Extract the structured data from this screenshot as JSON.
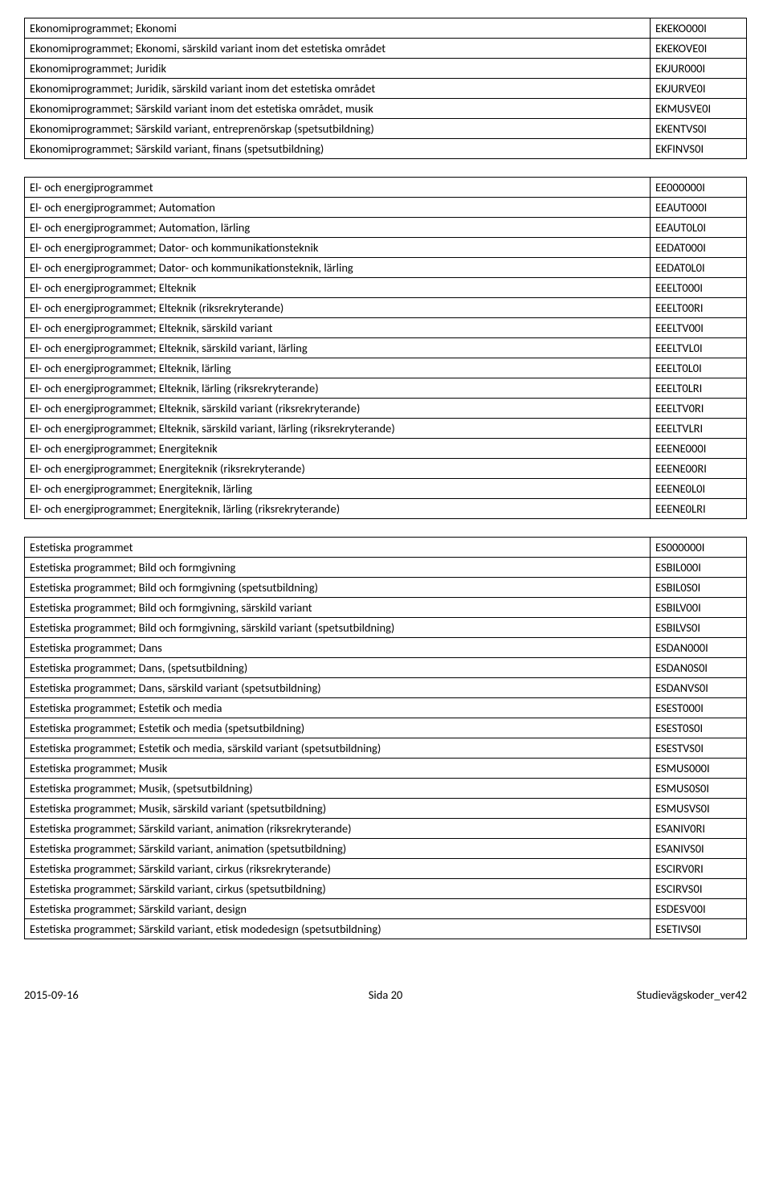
{
  "tables": [
    {
      "rows": [
        {
          "name": "Ekonomiprogrammet; Ekonomi",
          "code": "EKEKO000I"
        },
        {
          "name": "Ekonomiprogrammet; Ekonomi, särskild variant inom det estetiska området",
          "code": "EKEKOVE0I"
        },
        {
          "name": "Ekonomiprogrammet; Juridik",
          "code": "EKJUR000I"
        },
        {
          "name": "Ekonomiprogrammet; Juridik, särskild variant inom det estetiska området",
          "code": "EKJURVE0I"
        },
        {
          "name": "Ekonomiprogrammet; Särskild variant inom det estetiska området, musik",
          "code": "EKMUSVE0I"
        },
        {
          "name": "Ekonomiprogrammet; Särskild variant, entreprenörskap (spetsutbildning)",
          "code": "EKENTVS0I"
        },
        {
          "name": "Ekonomiprogrammet; Särskild variant, finans (spetsutbildning)",
          "code": "EKFINVS0I"
        }
      ]
    },
    {
      "rows": [
        {
          "name": "El- och energiprogrammet",
          "code": "EE000000I"
        },
        {
          "name": "El- och energiprogrammet; Automation",
          "code": "EEAUT000I"
        },
        {
          "name": "El- och energiprogrammet; Automation, lärling",
          "code": "EEAUT0L0I"
        },
        {
          "name": "El- och energiprogrammet; Dator- och kommunikationsteknik",
          "code": "EEDAT000I"
        },
        {
          "name": "El- och energiprogrammet; Dator- och kommunikationsteknik, lärling",
          "code": "EEDAT0L0I"
        },
        {
          "name": "El- och energiprogrammet; Elteknik",
          "code": "EEELT000I"
        },
        {
          "name": "El- och energiprogrammet; Elteknik (riksrekryterande)",
          "code": "EEELT00RI"
        },
        {
          "name": "El- och energiprogrammet; Elteknik, särskild variant",
          "code": "EEELTV00I"
        },
        {
          "name": "El- och energiprogrammet; Elteknik, särskild variant, lärling",
          "code": "EEELTVL0I"
        },
        {
          "name": "El- och energiprogrammet; Elteknik, lärling",
          "code": "EEELT0L0I"
        },
        {
          "name": "El- och energiprogrammet; Elteknik, lärling  (riksrekryterande)",
          "code": "EEELT0LRI"
        },
        {
          "name": "El- och energiprogrammet; Elteknik, särskild variant (riksrekryterande)",
          "code": "EEELTV0RI"
        },
        {
          "name": "El- och energiprogrammet; Elteknik, särskild variant, lärling (riksrekryterande)",
          "code": "EEELTVLRI"
        },
        {
          "name": "El- och energiprogrammet; Energiteknik",
          "code": "EEENE000I"
        },
        {
          "name": "El- och energiprogrammet; Energiteknik  (riksrekryterande)",
          "code": "EEENE00RI"
        },
        {
          "name": "El- och energiprogrammet; Energiteknik, lärling",
          "code": "EEENE0L0I"
        },
        {
          "name": "El- och energiprogrammet; Energiteknik, lärling  (riksrekryterande)",
          "code": "EEENE0LRI"
        }
      ]
    },
    {
      "rows": [
        {
          "name": "Estetiska programmet",
          "code": "ES000000I"
        },
        {
          "name": "Estetiska programmet; Bild och formgivning",
          "code": "ESBIL000I"
        },
        {
          "name": "Estetiska programmet; Bild och formgivning (spetsutbildning)",
          "code": "ESBIL0S0I"
        },
        {
          "name": "Estetiska programmet; Bild och formgivning, särskild variant",
          "code": "ESBILV00I"
        },
        {
          "name": "Estetiska programmet; Bild och formgivning, särskild variant  (spetsutbildning)",
          "code": "ESBILVS0I"
        },
        {
          "name": "Estetiska programmet; Dans",
          "code": "ESDAN000I"
        },
        {
          "name": "Estetiska programmet; Dans, (spetsutbildning)",
          "code": "ESDAN0S0I"
        },
        {
          "name": "Estetiska programmet; Dans, särskild variant (spetsutbildning)",
          "code": "ESDANVS0I"
        },
        {
          "name": "Estetiska programmet; Estetik och media",
          "code": "ESEST000I"
        },
        {
          "name": "Estetiska programmet; Estetik och media (spetsutbildning)",
          "code": "ESEST0S0I"
        },
        {
          "name": "Estetiska programmet; Estetik och media, särskild variant (spetsutbildning)",
          "code": "ESESTVS0I"
        },
        {
          "name": "Estetiska programmet; Musik",
          "code": "ESMUS000I"
        },
        {
          "name": "Estetiska programmet; Musik, (spetsutbildning)",
          "code": "ESMUS0S0I"
        },
        {
          "name": "Estetiska programmet; Musik, särskild variant (spetsutbildning)",
          "code": "ESMUSVS0I"
        },
        {
          "name": "Estetiska programmet; Särskild variant, animation (riksrekryterande)",
          "code": "ESANIV0RI"
        },
        {
          "name": "Estetiska programmet; Särskild variant, animation (spetsutbildning)",
          "code": "ESANIVS0I"
        },
        {
          "name": "Estetiska programmet; Särskild variant, cirkus (riksrekryterande)",
          "code": "ESCIRV0RI"
        },
        {
          "name": "Estetiska programmet; Särskild variant, cirkus (spetsutbildning)",
          "code": "ESCIRVS0I"
        },
        {
          "name": "Estetiska programmet; Särskild variant, design",
          "code": "ESDESV00I"
        },
        {
          "name": "Estetiska programmet; Särskild variant, etisk modedesign (spetsutbildning)",
          "code": "ESETIVS0I"
        }
      ]
    }
  ],
  "footer": {
    "left": "2015-09-16",
    "center": "Sida 20",
    "right": "Studievägskoder_ver42"
  }
}
